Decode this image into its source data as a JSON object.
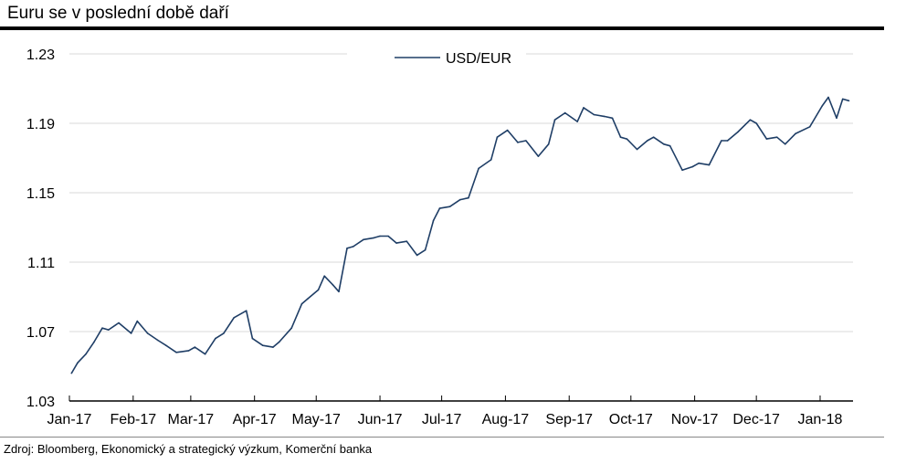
{
  "header": {
    "title": "Euru se v poslední době daří"
  },
  "footer": {
    "source": "Zdroj: Bloomberg, Ekonomický a strategický výzkum, Komerční banka"
  },
  "chart_data": {
    "type": "line",
    "title": "Euru se v poslední době daří",
    "xlabel": "",
    "ylabel": "",
    "ylim": [
      1.03,
      1.23
    ],
    "yticks": [
      1.03,
      1.07,
      1.11,
      1.15,
      1.19,
      1.23
    ],
    "ytick_labels": [
      "1.03",
      "1.07",
      "1.11",
      "1.15",
      "1.19",
      "1.23"
    ],
    "xticks": [
      "Jan-17",
      "Feb-17",
      "Mar-17",
      "Apr-17",
      "May-17",
      "Jun-17",
      "Jul-17",
      "Aug-17",
      "Sep-17",
      "Oct-17",
      "Nov-17",
      "Dec-17",
      "Jan-18"
    ],
    "grid": true,
    "legend": "top-center",
    "line_color": "#1f3e66",
    "series": [
      {
        "name": "USD/EUR",
        "x": [
          "2017-01-02",
          "2017-01-05",
          "2017-01-09",
          "2017-01-13",
          "2017-01-17",
          "2017-01-20",
          "2017-01-25",
          "2017-01-31",
          "2017-02-03",
          "2017-02-08",
          "2017-02-13",
          "2017-02-17",
          "2017-02-22",
          "2017-02-28",
          "2017-03-03",
          "2017-03-08",
          "2017-03-13",
          "2017-03-17",
          "2017-03-22",
          "2017-03-28",
          "2017-03-31",
          "2017-04-05",
          "2017-04-10",
          "2017-04-13",
          "2017-04-19",
          "2017-04-24",
          "2017-04-27",
          "2017-05-02",
          "2017-05-05",
          "2017-05-09",
          "2017-05-12",
          "2017-05-16",
          "2017-05-19",
          "2017-05-24",
          "2017-05-29",
          "2017-06-01",
          "2017-06-05",
          "2017-06-09",
          "2017-06-14",
          "2017-06-19",
          "2017-06-23",
          "2017-06-27",
          "2017-06-30",
          "2017-07-05",
          "2017-07-10",
          "2017-07-14",
          "2017-07-19",
          "2017-07-25",
          "2017-07-28",
          "2017-08-02",
          "2017-08-07",
          "2017-08-11",
          "2017-08-17",
          "2017-08-22",
          "2017-08-25",
          "2017-08-30",
          "2017-09-05",
          "2017-09-08",
          "2017-09-13",
          "2017-09-18",
          "2017-09-22",
          "2017-09-26",
          "2017-09-29",
          "2017-10-04",
          "2017-10-09",
          "2017-10-12",
          "2017-10-17",
          "2017-10-20",
          "2017-10-26",
          "2017-10-31",
          "2017-11-03",
          "2017-11-08",
          "2017-11-14",
          "2017-11-17",
          "2017-11-22",
          "2017-11-28",
          "2017-12-01",
          "2017-12-06",
          "2017-12-11",
          "2017-12-15",
          "2017-12-20",
          "2017-12-27",
          "2018-01-02",
          "2018-01-05",
          "2018-01-09",
          "2018-01-12",
          "2018-01-15"
        ],
        "values": [
          1.046,
          1.052,
          1.057,
          1.064,
          1.072,
          1.071,
          1.075,
          1.069,
          1.076,
          1.069,
          1.065,
          1.062,
          1.058,
          1.059,
          1.061,
          1.057,
          1.066,
          1.069,
          1.078,
          1.082,
          1.066,
          1.062,
          1.061,
          1.064,
          1.072,
          1.086,
          1.089,
          1.094,
          1.102,
          1.097,
          1.093,
          1.118,
          1.119,
          1.123,
          1.124,
          1.125,
          1.125,
          1.121,
          1.122,
          1.114,
          1.117,
          1.134,
          1.141,
          1.142,
          1.146,
          1.147,
          1.164,
          1.169,
          1.182,
          1.186,
          1.179,
          1.18,
          1.171,
          1.178,
          1.192,
          1.196,
          1.191,
          1.199,
          1.195,
          1.194,
          1.193,
          1.182,
          1.181,
          1.175,
          1.18,
          1.182,
          1.178,
          1.177,
          1.163,
          1.165,
          1.167,
          1.166,
          1.18,
          1.18,
          1.185,
          1.192,
          1.19,
          1.181,
          1.182,
          1.178,
          1.184,
          1.188,
          1.2,
          1.205,
          1.193,
          1.204,
          1.203
        ]
      }
    ]
  }
}
